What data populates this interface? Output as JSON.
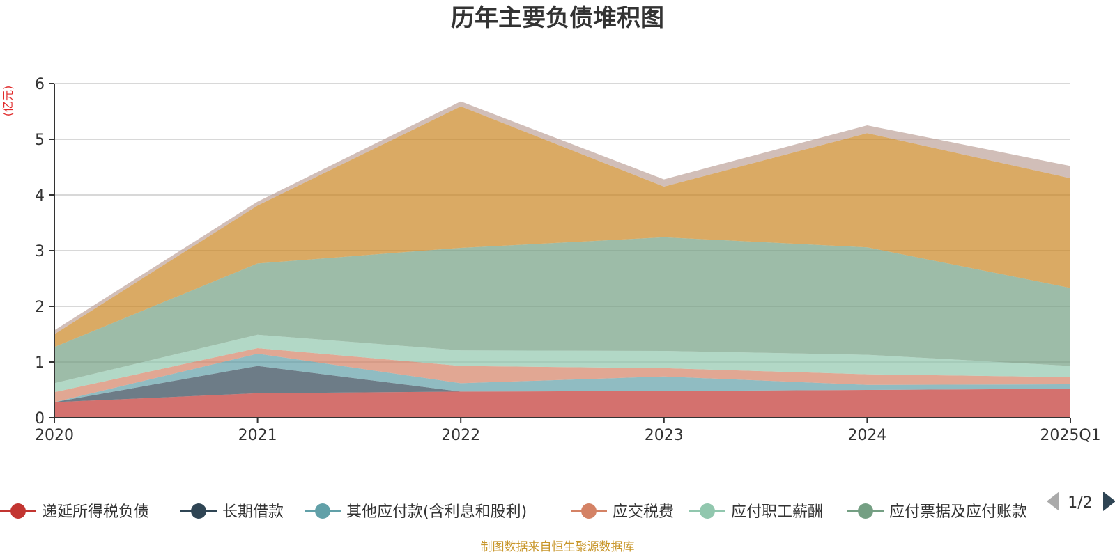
{
  "chart_data": {
    "type": "area",
    "stacked": true,
    "title": "历年主要负债堆积图",
    "unit": "(亿元)",
    "categories": [
      "2020",
      "2021",
      "2022",
      "2023",
      "2024",
      "2025Q1"
    ],
    "ylim": [
      0,
      6
    ],
    "yticks": [
      "0",
      "1",
      "2",
      "3",
      "4",
      "5",
      "6"
    ],
    "grid": true,
    "series": [
      {
        "name": "递延所得税负债",
        "color": "#c23531",
        "values": [
          0.28,
          0.44,
          0.47,
          0.48,
          0.5,
          0.52
        ]
      },
      {
        "name": "长期借款",
        "color": "#2f4554",
        "values": [
          0.0,
          0.49,
          0.0,
          0.0,
          0.0,
          0.0
        ]
      },
      {
        "name": "其他应付款(含利息和股利)",
        "color": "#61a0a8",
        "values": [
          0.0,
          0.22,
          0.15,
          0.26,
          0.09,
          0.08
        ]
      },
      {
        "name": "应交税费",
        "color": "#d48265",
        "values": [
          0.18,
          0.1,
          0.31,
          0.15,
          0.19,
          0.13
        ]
      },
      {
        "name": "应付职工薪酬",
        "color": "#91c7ae",
        "values": [
          0.16,
          0.24,
          0.28,
          0.31,
          0.35,
          0.2
        ]
      },
      {
        "name": "应付票据及应付账款",
        "color": "#749f83",
        "values": [
          0.65,
          1.28,
          1.84,
          2.04,
          1.93,
          1.4
        ]
      },
      {
        "name": "",
        "color": "#ca8622",
        "values": [
          0.23,
          1.04,
          2.54,
          0.91,
          2.05,
          1.97
        ]
      },
      {
        "name": "",
        "color": "#bda29a",
        "values": [
          0.07,
          0.07,
          0.09,
          0.13,
          0.14,
          0.22
        ]
      }
    ],
    "legend_position": "bottom"
  },
  "legend": {
    "page": "1/2"
  },
  "source": "制图数据来自恒生聚源数据库"
}
